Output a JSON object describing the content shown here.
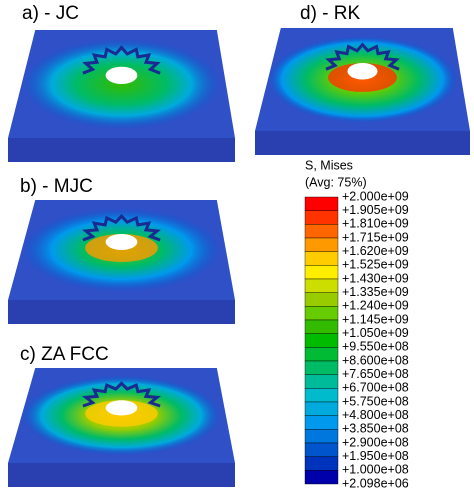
{
  "panels": [
    {
      "label": "a) - JC"
    },
    {
      "label": "b) - MJC"
    },
    {
      "label": "c) ZA FCC"
    },
    {
      "label": "d) - RK"
    }
  ],
  "legend": {
    "title": "S, Mises",
    "subtitle": "(Avg: 75%)",
    "labels": [
      "+2.000e+09",
      "+1.905e+09",
      "+1.810e+09",
      "+1.715e+09",
      "+1.620e+09",
      "+1.525e+09",
      "+1.430e+09",
      "+1.335e+09",
      "+1.240e+09",
      "+1.145e+09",
      "+1.050e+09",
      "+9.550e+08",
      "+8.600e+08",
      "+7.650e+08",
      "+6.700e+08",
      "+5.750e+08",
      "+4.800e+08",
      "+3.850e+08",
      "+2.900e+08",
      "+1.950e+08",
      "+1.000e+08",
      "+2.098e+06"
    ],
    "colors": [
      "#ff0000",
      "#ff3300",
      "#ff6600",
      "#ff9900",
      "#ffcc00",
      "#ffee00",
      "#ccdd00",
      "#99cc00",
      "#66cc00",
      "#33bb00",
      "#00bb00",
      "#00bb33",
      "#00bb66",
      "#00bb99",
      "#00bbcc",
      "#00aadd",
      "#0099ee",
      "#0077dd",
      "#0055cc",
      "#0033bb",
      "#0000aa"
    ]
  }
}
